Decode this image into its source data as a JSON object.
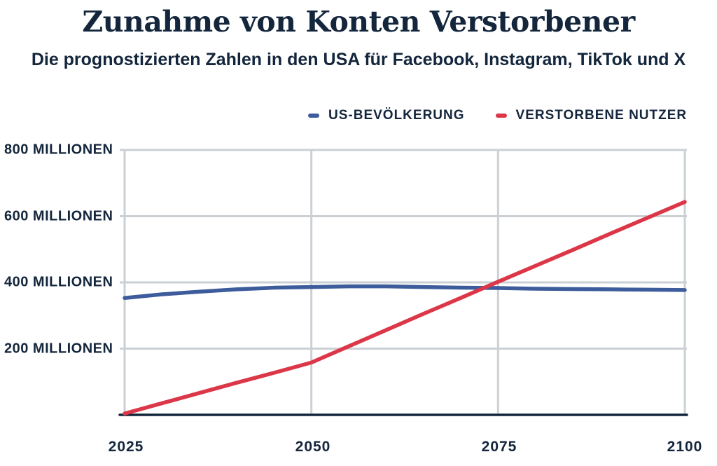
{
  "title": "Zunahme von Konten Verstorbener",
  "subtitle": "Die prognostizierten Zahlen in den USA für Facebook, Instagram, TikTok und X",
  "legend": [
    {
      "label": "US-BEVÖLKERUNG",
      "color": "#3D5C9C"
    },
    {
      "label": "VERSTORBENE NUTZER",
      "color": "#DC3748"
    }
  ],
  "colors": {
    "text": "#14263C",
    "grid": "#CBD0D5",
    "baseline": "#14263C",
    "background": "#FFFFFF",
    "us_population": "#3D5C9C",
    "deceased_users": "#DC3748"
  },
  "chart_data": {
    "type": "line",
    "title": "Zunahme von Konten Verstorbener",
    "subtitle": "Die prognostizierten Zahlen in den USA für Facebook, Instagram, TikTok und X",
    "unit": "Millionen",
    "xlim": [
      2025,
      2100
    ],
    "ylim": [
      0,
      800
    ],
    "grid": true,
    "legend_position": "top",
    "x": [
      2025,
      2030,
      2035,
      2040,
      2045,
      2050,
      2055,
      2060,
      2065,
      2070,
      2075,
      2080,
      2085,
      2090,
      2095,
      2100
    ],
    "series": [
      {
        "name": "US-Bevölkerung",
        "color": "#3D5C9C",
        "values": [
          353,
          364,
          372,
          379,
          384,
          386,
          388,
          388,
          386,
          384,
          383,
          381,
          380,
          379,
          378,
          377
        ]
      },
      {
        "name": "Verstorbene Nutzer",
        "color": "#DC3748",
        "values": [
          4,
          35,
          66,
          97,
          127,
          158,
          207,
          256,
          305,
          353,
          402,
          450,
          498,
          547,
          595,
          643
        ]
      }
    ],
    "x_ticks": [
      2025,
      2050,
      2075,
      2100
    ],
    "x_tick_labels": [
      "2025",
      "2050",
      "2075",
      "2100"
    ],
    "y_ticks": [
      800,
      600,
      400,
      200
    ],
    "y_tick_labels": [
      "800 MILLIONEN",
      "600 MILLIONEN",
      "400 MILLIONEN",
      "200 MILLIONEN"
    ]
  }
}
